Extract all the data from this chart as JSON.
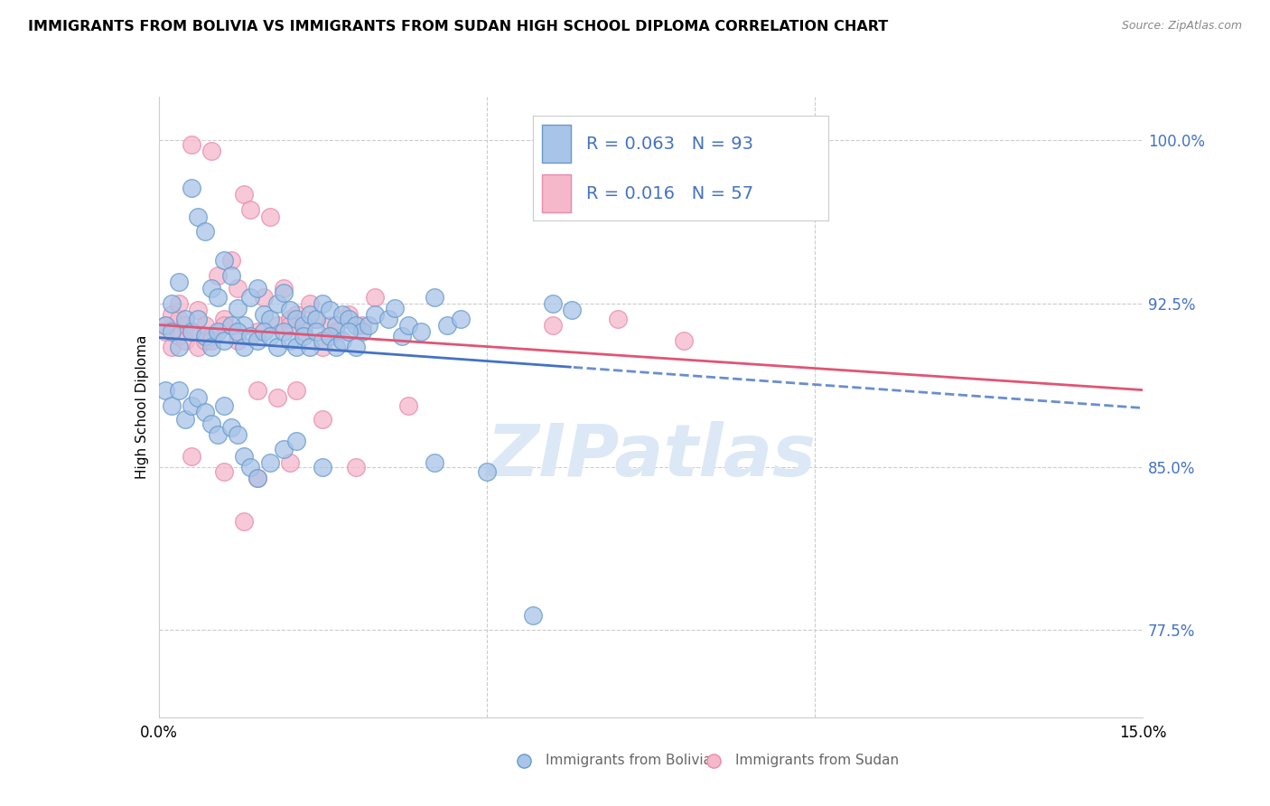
{
  "title": "IMMIGRANTS FROM BOLIVIA VS IMMIGRANTS FROM SUDAN HIGH SCHOOL DIPLOMA CORRELATION CHART",
  "source": "Source: ZipAtlas.com",
  "ylabel": "High School Diploma",
  "xlim": [
    0.0,
    0.15
  ],
  "ylim": [
    73.5,
    102.0
  ],
  "bolivia_color": "#a8c4e8",
  "sudan_color": "#f5b8cb",
  "bolivia_edge": "#6699cc",
  "sudan_edge": "#e88aaa",
  "trend_bolivia_color": "#4472c4",
  "trend_sudan_color": "#e05575",
  "legend_text_color": "#4472c4",
  "legend_r_bolivia": "0.063",
  "legend_n_bolivia": "93",
  "legend_r_sudan": "0.016",
  "legend_n_sudan": "57",
  "legend_label_bolivia": "Immigrants from Bolivia",
  "legend_label_sudan": "Immigrants from Sudan",
  "watermark": "ZIPatlas",
  "bolivia_x": [
    0.001,
    0.002,
    0.003,
    0.005,
    0.006,
    0.007,
    0.008,
    0.009,
    0.01,
    0.011,
    0.012,
    0.013,
    0.014,
    0.015,
    0.016,
    0.017,
    0.018,
    0.019,
    0.02,
    0.021,
    0.022,
    0.023,
    0.024,
    0.025,
    0.026,
    0.027,
    0.028,
    0.029,
    0.03,
    0.031,
    0.032,
    0.033,
    0.035,
    0.036,
    0.037,
    0.038,
    0.04,
    0.042,
    0.044,
    0.046,
    0.002,
    0.003,
    0.004,
    0.005,
    0.006,
    0.007,
    0.008,
    0.009,
    0.01,
    0.011,
    0.012,
    0.013,
    0.014,
    0.015,
    0.016,
    0.017,
    0.018,
    0.019,
    0.02,
    0.021,
    0.022,
    0.023,
    0.024,
    0.025,
    0.026,
    0.027,
    0.028,
    0.029,
    0.03,
    0.001,
    0.002,
    0.003,
    0.004,
    0.005,
    0.006,
    0.007,
    0.008,
    0.009,
    0.01,
    0.011,
    0.012,
    0.013,
    0.014,
    0.015,
    0.017,
    0.019,
    0.021,
    0.025,
    0.06,
    0.063,
    0.042,
    0.05,
    0.057
  ],
  "bolivia_y": [
    91.5,
    92.5,
    93.5,
    97.8,
    96.5,
    95.8,
    93.2,
    92.8,
    94.5,
    93.8,
    92.3,
    91.5,
    92.8,
    93.2,
    92.0,
    91.8,
    92.5,
    93.0,
    92.2,
    91.8,
    91.5,
    92.0,
    91.8,
    92.5,
    92.2,
    91.5,
    92.0,
    91.8,
    91.5,
    91.2,
    91.5,
    92.0,
    91.8,
    92.3,
    91.0,
    91.5,
    91.2,
    92.8,
    91.5,
    91.8,
    91.2,
    90.5,
    91.8,
    91.2,
    91.8,
    91.0,
    90.5,
    91.2,
    90.8,
    91.5,
    91.2,
    90.5,
    91.0,
    90.8,
    91.2,
    91.0,
    90.5,
    91.2,
    90.8,
    90.5,
    91.0,
    90.5,
    91.2,
    90.8,
    91.0,
    90.5,
    90.8,
    91.2,
    90.5,
    88.5,
    87.8,
    88.5,
    87.2,
    87.8,
    88.2,
    87.5,
    87.0,
    86.5,
    87.8,
    86.8,
    86.5,
    85.5,
    85.0,
    84.5,
    85.2,
    85.8,
    86.2,
    85.0,
    92.5,
    92.2,
    85.2,
    84.8,
    78.2
  ],
  "sudan_x": [
    0.001,
    0.002,
    0.003,
    0.004,
    0.005,
    0.006,
    0.007,
    0.008,
    0.009,
    0.01,
    0.011,
    0.012,
    0.013,
    0.014,
    0.015,
    0.016,
    0.017,
    0.018,
    0.019,
    0.02,
    0.021,
    0.022,
    0.023,
    0.024,
    0.025,
    0.026,
    0.027,
    0.029,
    0.031,
    0.033,
    0.001,
    0.002,
    0.003,
    0.004,
    0.005,
    0.006,
    0.007,
    0.008,
    0.01,
    0.012,
    0.015,
    0.018,
    0.021,
    0.025,
    0.03,
    0.038,
    0.005,
    0.01,
    0.015,
    0.02,
    0.003,
    0.008,
    0.013,
    0.02,
    0.06,
    0.07,
    0.08
  ],
  "sudan_y": [
    91.5,
    92.0,
    91.8,
    91.5,
    99.8,
    92.2,
    91.5,
    99.5,
    93.8,
    91.8,
    94.5,
    93.2,
    97.5,
    96.8,
    91.2,
    92.8,
    96.5,
    91.5,
    93.2,
    91.8,
    92.0,
    91.2,
    92.5,
    91.8,
    90.5,
    91.5,
    91.2,
    92.0,
    91.5,
    92.8,
    91.2,
    90.5,
    91.0,
    90.8,
    91.2,
    90.5,
    90.8,
    91.0,
    91.5,
    90.8,
    88.5,
    88.2,
    88.5,
    87.2,
    85.0,
    87.8,
    85.5,
    84.8,
    84.5,
    85.2,
    92.5,
    90.8,
    82.5,
    91.5,
    91.5,
    91.8,
    90.8
  ]
}
